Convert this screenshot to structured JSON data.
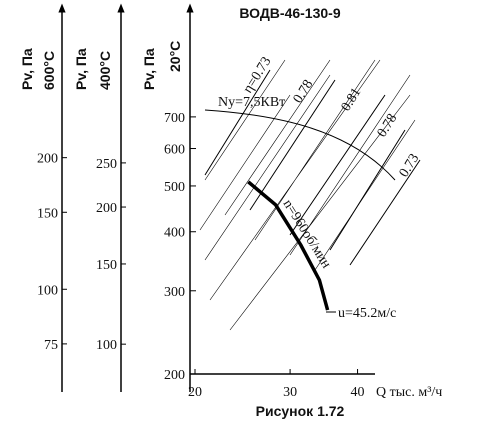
{
  "chart_data": {
    "type": "line",
    "title": "ВОДВ-46-130-9",
    "caption": "Рисунок 1.72",
    "x_label": "Q тыс. м³/ч",
    "y_label": "Pv, Па",
    "y_temp": "20°C",
    "log_x": true,
    "log_y": true,
    "xlim": [
      20,
      42
    ],
    "xticks": [
      20,
      30,
      40
    ],
    "ylim": [
      200,
      1150
    ],
    "yticks": [
      200,
      300,
      400,
      500,
      600,
      700
    ],
    "series": [
      {
        "name": "n=960об/мин",
        "color": "#000000",
        "x": [
          25.1,
          28.2,
          31.4,
          34.0,
          35.2
        ],
        "values": [
          510,
          456,
          375,
          316,
          273
        ]
      }
    ],
    "extra_y_axes": [
      {
        "label": "Pv, Па",
        "temp": "600°C",
        "ylim": [
          64,
          424
        ],
        "yticks": [
          75,
          100,
          150,
          200
        ]
      },
      {
        "label": "Pv, Па",
        "temp": "400°C",
        "ylim": [
          86,
          528
        ],
        "yticks": [
          100,
          150,
          200,
          250
        ]
      }
    ],
    "efficiency_labels": [
      "η=0.73",
      "0.78",
      "0.81",
      "0.78",
      "0.73"
    ],
    "power_label": "Ny=7,5КВт",
    "speed_label": "u=45.2м/с"
  }
}
